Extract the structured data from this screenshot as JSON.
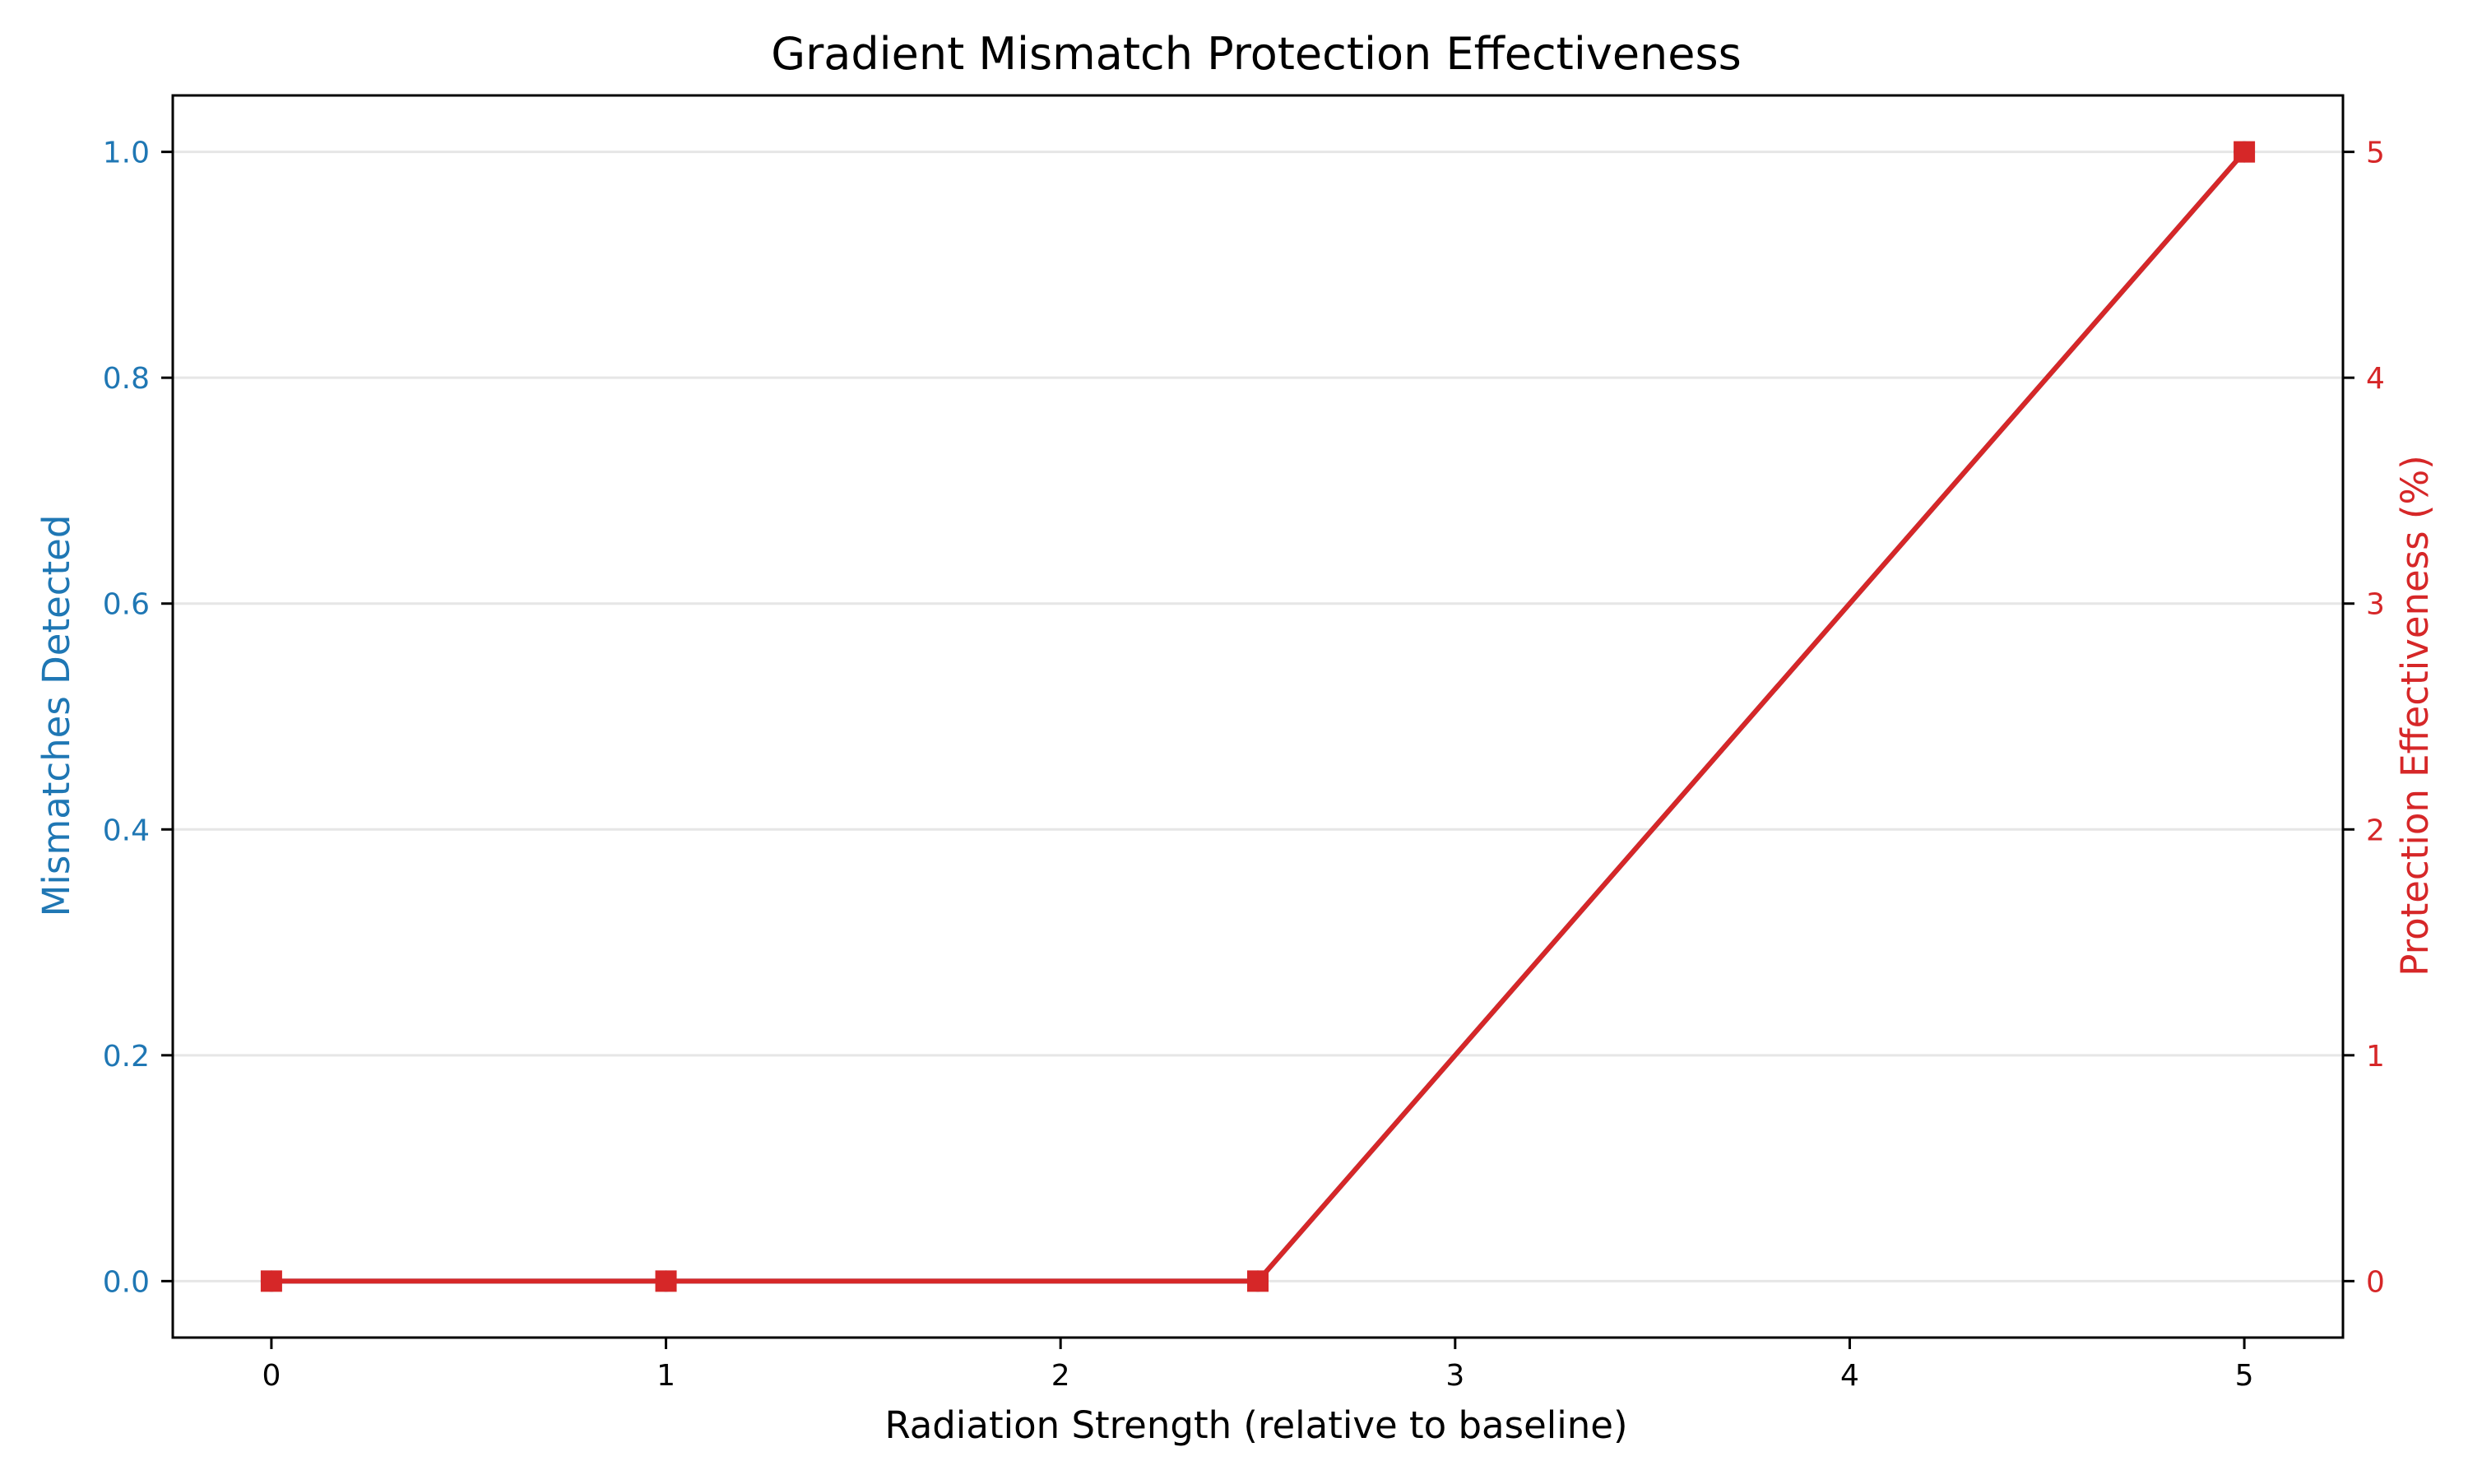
{
  "chart_data": {
    "type": "line",
    "title": "Gradient Mismatch Protection Effectiveness",
    "xlabel": "Radiation Strength (relative to baseline)",
    "ylabel_left": "Mismatches Detected",
    "ylabel_right": "Protection Effectiveness (%)",
    "xlim": [
      -0.25,
      5.25
    ],
    "ylim_left": [
      -0.05,
      1.05
    ],
    "ylim_right": [
      -0.25,
      5.25
    ],
    "xticks": [
      0,
      1,
      2,
      3,
      4,
      5
    ],
    "yticks_left": [
      0.0,
      0.2,
      0.4,
      0.6,
      0.8,
      1.0
    ],
    "yticks_right": [
      0,
      1,
      2,
      3,
      4,
      5
    ],
    "grid": "horizontal",
    "series": [
      {
        "axis": "left",
        "color": "#1f77b4",
        "marker": "circle",
        "x": [
          0,
          1,
          2.5,
          5
        ],
        "y": [
          0,
          0,
          0,
          1
        ]
      },
      {
        "axis": "right",
        "color": "#d62728",
        "marker": "square",
        "x": [
          0,
          1,
          2.5,
          5
        ],
        "y": [
          0,
          0,
          0,
          5
        ]
      }
    ],
    "colors": {
      "left_axis": "#1f77b4",
      "right_axis": "#d62728",
      "grid": "#e6e6e6",
      "text": "#000000"
    }
  }
}
